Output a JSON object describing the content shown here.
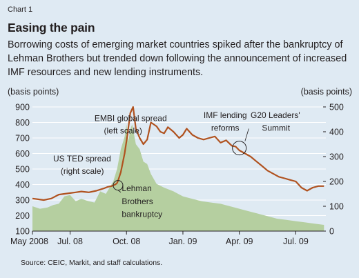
{
  "header": {
    "chart_number": "Chart 1",
    "title": "Easing the pain",
    "subtitle": "Borrowing costs of emerging market countries spiked after the bankruptcy of Lehman Brothers but trended down following the announcement of increased IMF resources and new lending instruments."
  },
  "source": "Source: CEIC, Markit, and staff calculations.",
  "colors": {
    "background": "#dfeaf3",
    "embi_line": "#b0521f",
    "ted_area": "#b5cfa0",
    "gridline": "#ffffff"
  },
  "chart_data": {
    "type": "area",
    "left_unit": "(basis points)",
    "right_unit": "(basis points)",
    "left_ylim": [
      100,
      900
    ],
    "right_ylim": [
      0,
      500
    ],
    "left_ticks": [
      100,
      200,
      300,
      400,
      500,
      600,
      700,
      800,
      900
    ],
    "right_ticks": [
      0,
      100,
      200,
      300,
      400,
      500
    ],
    "xlim": [
      0,
      15.6
    ],
    "x_ticks": [
      {
        "label": "May 2008",
        "x": 0
      },
      {
        "label": "Jul. 08",
        "x": 2
      },
      {
        "label": "Oct. 08",
        "x": 5
      },
      {
        "label": "Jan. 09",
        "x": 8
      },
      {
        "label": "Apr. 09",
        "x": 11
      },
      {
        "label": "Jul. 09",
        "x": 14
      }
    ],
    "x_unit_note": "x = months since May 2008",
    "grid": true,
    "series": [
      {
        "name": "EMBI global spread (left scale)",
        "axis": "left",
        "kind": "line",
        "x": [
          0,
          0.3,
          0.6,
          1.0,
          1.4,
          1.7,
          2.0,
          2.3,
          2.6,
          3.0,
          3.4,
          3.8,
          4.0,
          4.2,
          4.4,
          4.5,
          4.55,
          4.7,
          4.9,
          5.05,
          5.2,
          5.35,
          5.5,
          5.7,
          5.9,
          6.1,
          6.3,
          6.6,
          6.8,
          7.0,
          7.2,
          7.5,
          7.8,
          8.0,
          8.2,
          8.5,
          8.8,
          9.1,
          9.4,
          9.7,
          10.0,
          10.3,
          10.6,
          10.8,
          11.0,
          11.3,
          11.6,
          11.9,
          12.2,
          12.5,
          12.8,
          13.1,
          13.4,
          13.7,
          14.0,
          14.3,
          14.6,
          14.9,
          15.2,
          15.5
        ],
        "y": [
          310,
          305,
          300,
          310,
          335,
          340,
          345,
          350,
          355,
          350,
          360,
          375,
          385,
          390,
          400,
          410,
          425,
          480,
          600,
          720,
          860,
          900,
          760,
          700,
          660,
          690,
          800,
          775,
          740,
          730,
          770,
          740,
          700,
          720,
          760,
          720,
          700,
          690,
          700,
          710,
          670,
          685,
          650,
          645,
          620,
          600,
          580,
          550,
          520,
          490,
          470,
          450,
          440,
          430,
          420,
          380,
          360,
          380,
          390,
          390
        ]
      },
      {
        "name": "US TED spread (right scale)",
        "axis": "right",
        "kind": "area",
        "x": [
          0,
          0.4,
          0.8,
          1.1,
          1.4,
          1.7,
          2.0,
          2.3,
          2.6,
          3.0,
          3.3,
          3.6,
          3.9,
          4.1,
          4.3,
          4.5,
          4.7,
          4.9,
          5.0,
          5.1,
          5.2,
          5.3,
          5.5,
          5.7,
          5.9,
          6.1,
          6.3,
          6.6,
          7.0,
          7.5,
          8.0,
          8.5,
          9.0,
          9.5,
          10.0,
          10.5,
          11.0,
          11.5,
          12.0,
          12.5,
          13.0,
          13.5,
          14.0,
          14.5,
          15.0,
          15.5
        ],
        "y": [
          100,
          90,
          95,
          105,
          110,
          140,
          145,
          120,
          130,
          120,
          115,
          160,
          150,
          175,
          200,
          250,
          330,
          380,
          430,
          360,
          410,
          430,
          350,
          330,
          280,
          270,
          230,
          190,
          175,
          160,
          140,
          130,
          120,
          115,
          110,
          100,
          90,
          80,
          70,
          60,
          50,
          45,
          40,
          35,
          30,
          25
        ]
      }
    ],
    "annotations": [
      {
        "text": "EMBI global spread",
        "x": 3.3,
        "y_left": 810
      },
      {
        "text": "(left scale)",
        "x": 3.8,
        "y_left": 730
      },
      {
        "text": "US TED spread",
        "x": 1.1,
        "y_left": 550
      },
      {
        "text": "(right scale)",
        "x": 1.5,
        "y_left": 468
      },
      {
        "text": "Lehman",
        "x": 4.75,
        "y_left": 357
      },
      {
        "text": "Brothers",
        "x": 4.75,
        "y_left": 274
      },
      {
        "text": "bankruptcy",
        "x": 4.75,
        "y_left": 191
      },
      {
        "text": "IMF lending",
        "x": 9.1,
        "y_left": 828
      },
      {
        "text": "reforms",
        "x": 9.5,
        "y_left": 746
      },
      {
        "text": "G20 Leaders'",
        "x": 11.6,
        "y_left": 828
      },
      {
        "text": "Summit",
        "x": 12.2,
        "y_left": 746
      }
    ]
  }
}
